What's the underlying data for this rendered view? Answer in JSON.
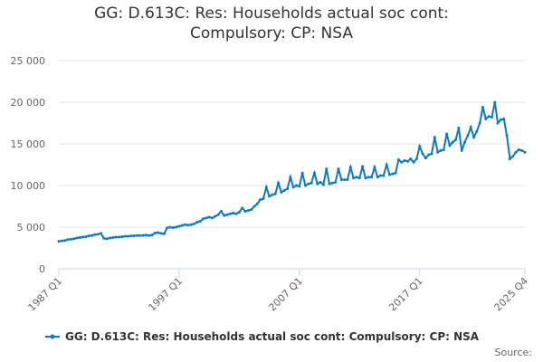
{
  "chart_data": {
    "type": "line",
    "title": "GG: D.613C: Res: Households actual soc cont: Compulsory: CP: NSA",
    "source": "Source:",
    "categories": [
      "1987 Q1",
      null,
      null,
      null,
      null,
      null,
      null,
      null,
      null,
      null,
      null,
      null,
      null,
      null,
      null,
      null,
      null,
      null,
      null,
      null,
      null,
      null,
      null,
      null,
      null,
      null,
      null,
      null,
      null,
      null,
      null,
      null,
      null,
      null,
      null,
      null,
      null,
      null,
      null,
      null,
      "1997 Q1",
      null,
      null,
      null,
      null,
      null,
      null,
      null,
      null,
      null,
      null,
      null,
      null,
      null,
      null,
      null,
      null,
      null,
      null,
      null,
      null,
      null,
      null,
      null,
      null,
      null,
      null,
      null,
      null,
      null,
      null,
      null,
      null,
      null,
      null,
      null,
      null,
      null,
      null,
      null,
      "2007 Q1",
      null,
      null,
      null,
      null,
      null,
      null,
      null,
      null,
      null,
      null,
      null,
      null,
      null,
      null,
      null,
      null,
      null,
      null,
      null,
      null,
      null,
      null,
      null,
      null,
      null,
      null,
      null,
      null,
      null,
      null,
      null,
      null,
      null,
      null,
      null,
      null,
      null,
      null,
      null,
      "2017 Q1",
      null,
      null,
      null,
      null,
      null,
      null,
      null,
      null,
      null,
      null,
      null,
      null,
      null,
      null,
      null,
      null,
      null,
      null,
      null,
      null,
      null,
      null,
      null,
      null,
      null,
      null,
      null,
      null,
      null,
      null,
      null,
      null,
      null,
      null,
      "2025 Q4"
    ],
    "series": [
      {
        "name": "GG: D.613C: Res: Households actual soc cont: Compulsory: CP: NSA",
        "color": "#0e7ac0",
        "values": [
          3300,
          3350,
          3400,
          3500,
          3550,
          3600,
          3700,
          3750,
          3800,
          3850,
          3950,
          4000,
          4100,
          4150,
          4250,
          3650,
          3600,
          3700,
          3750,
          3800,
          3800,
          3850,
          3900,
          3900,
          3950,
          3950,
          4000,
          4000,
          4000,
          4050,
          4000,
          4050,
          4300,
          4350,
          4250,
          4200,
          4900,
          5000,
          4950,
          5000,
          5100,
          5200,
          5300,
          5250,
          5300,
          5400,
          5600,
          5700,
          6000,
          6100,
          6200,
          6100,
          6300,
          6500,
          6900,
          6400,
          6500,
          6600,
          6700,
          6600,
          6800,
          7300,
          6900,
          7000,
          7100,
          7500,
          7800,
          8300,
          8400,
          9800,
          8700,
          8900,
          9000,
          10300,
          9200,
          9400,
          9600,
          11000,
          9800,
          10000,
          9900,
          11500,
          10000,
          10200,
          10300,
          11500,
          10200,
          10400,
          10100,
          12000,
          10200,
          10300,
          10400,
          12000,
          10700,
          10700,
          10700,
          12200,
          10900,
          11000,
          10900,
          12300,
          10900,
          11000,
          11000,
          12200,
          11000,
          11200,
          11200,
          12500,
          11300,
          11400,
          11500,
          13100,
          12800,
          13000,
          12900,
          13200,
          12800,
          13200,
          14700,
          13800,
          13300,
          13700,
          13800,
          15800,
          14000,
          14200,
          14300,
          16200,
          14800,
          15200,
          15500,
          16900,
          14200,
          15200,
          16000,
          17000,
          15800,
          16500,
          17500,
          19400,
          18000,
          18300,
          18200,
          20000,
          17500,
          17900,
          18000,
          16000,
          13200,
          13500,
          14000,
          14300,
          14200,
          14000
        ]
      }
    ],
    "ylim": [
      0,
      25000
    ],
    "yticks": [
      0,
      {
        "value": 5000,
        "label": "5 000"
      },
      {
        "value": 10000,
        "label": "10 000"
      },
      {
        "value": 15000,
        "label": "15 000"
      },
      {
        "value": 20000,
        "label": "20 000"
      },
      {
        "value": 25000,
        "label": "25 000"
      }
    ],
    "grid": true
  }
}
